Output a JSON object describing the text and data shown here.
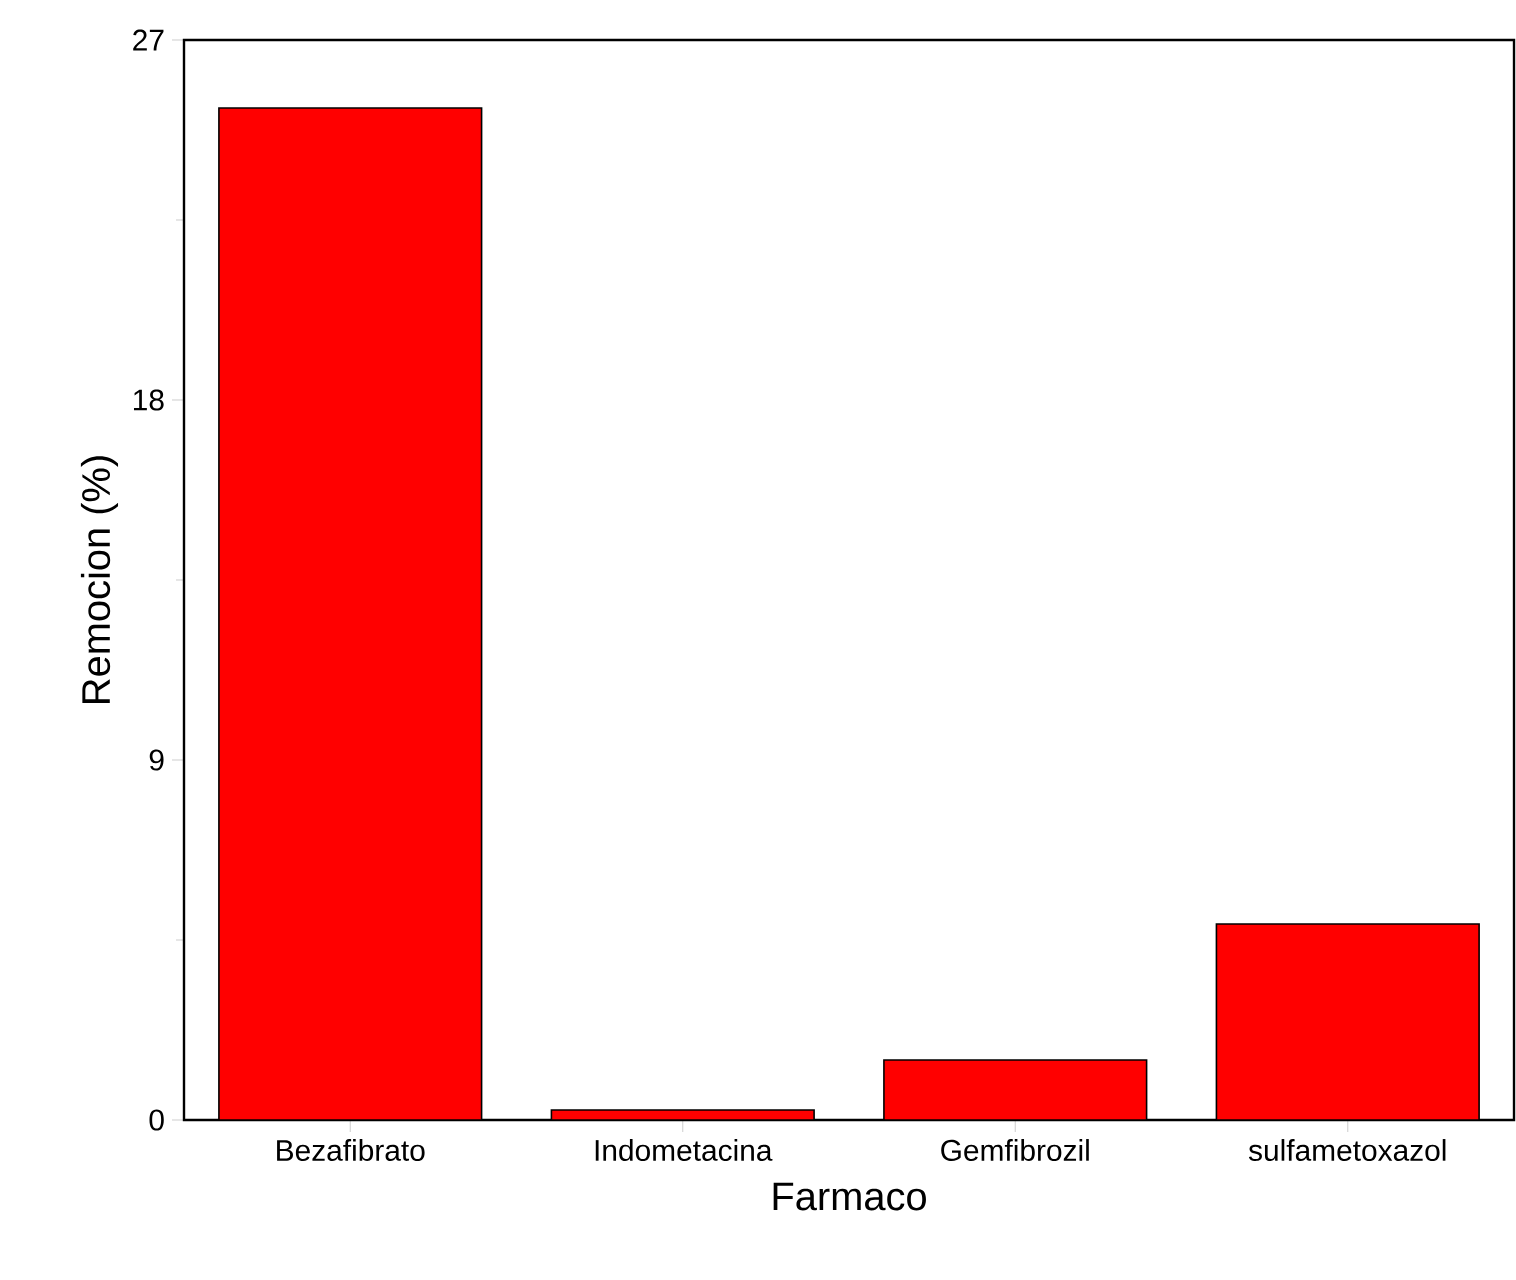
{
  "chart_data": {
    "type": "bar",
    "xlabel": "Farmaco",
    "ylabel": "Remocion (%)",
    "categories": [
      "Bezafibrato",
      "Indometacina",
      "Gemfibrozil",
      "sulfametoxazol"
    ],
    "values": [
      25.3,
      0.25,
      1.5,
      4.9
    ],
    "color": "#ff0000",
    "ylim": [
      0,
      27
    ],
    "yticks": [
      0,
      9,
      18,
      27
    ]
  }
}
